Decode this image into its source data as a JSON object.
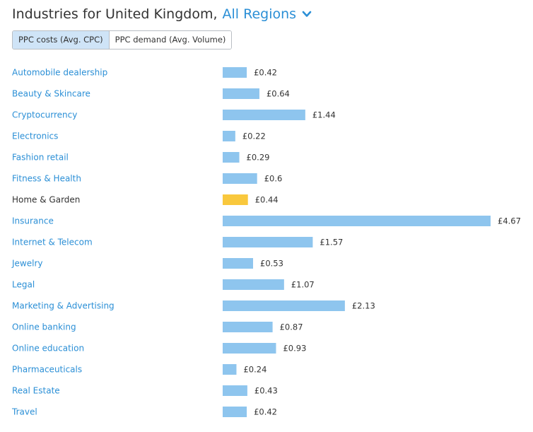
{
  "header": {
    "title": "Industries for United Kingdom,",
    "region_link": "All Regions"
  },
  "toggle": {
    "options": [
      "PPC costs (Avg. CPC)",
      "PPC demand (Avg. Volume)"
    ],
    "active_index": 0
  },
  "colors": {
    "bar": "#8ec5ee",
    "highlight_bar": "#f9c83d",
    "link": "#2b8fd6",
    "text": "#333333"
  },
  "chart_data": {
    "type": "bar",
    "orientation": "horizontal",
    "currency": "£",
    "categories": [
      "Automobile dealership",
      "Beauty & Skincare",
      "Cryptocurrency",
      "Electronics",
      "Fashion retail",
      "Fitness & Health",
      "Home & Garden",
      "Insurance",
      "Internet & Telecom",
      "Jewelry",
      "Legal",
      "Marketing & Advertising",
      "Online banking",
      "Online education",
      "Pharmaceuticals",
      "Real Estate",
      "Travel"
    ],
    "values": [
      0.42,
      0.64,
      1.44,
      0.22,
      0.29,
      0.6,
      0.44,
      4.67,
      1.57,
      0.53,
      1.07,
      2.13,
      0.87,
      0.93,
      0.24,
      0.43,
      0.42
    ],
    "value_labels": [
      "£0.42",
      "£0.64",
      "£1.44",
      "£0.22",
      "£0.29",
      "£0.6",
      "£0.44",
      "£4.67",
      "£1.57",
      "£0.53",
      "£1.07",
      "£2.13",
      "£0.87",
      "£0.93",
      "£0.24",
      "£0.43",
      "£0.42"
    ],
    "highlighted_category": "Home & Garden",
    "xlim": [
      0,
      4.67
    ],
    "grid": false,
    "title": "",
    "xlabel": "",
    "ylabel": ""
  }
}
